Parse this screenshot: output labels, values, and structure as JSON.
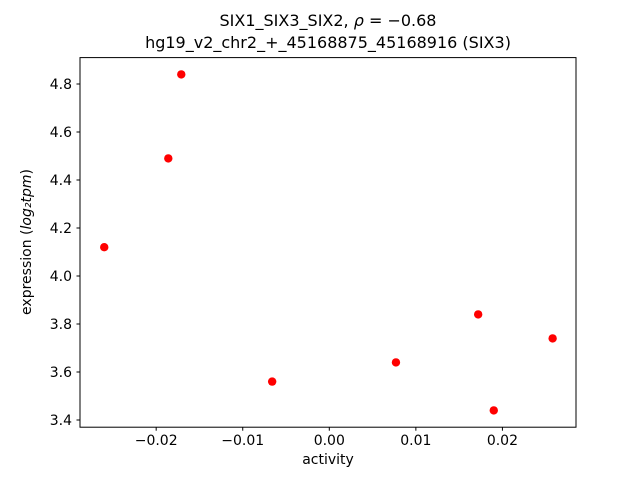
{
  "figure": {
    "background": "#ffffff",
    "title": {
      "line1_prefix": "SIX1_SIX3_SIX2, ",
      "line1_rho": "ρ",
      "line1_rest": " = −0.68",
      "line2": "hg19_v2_chr2_+_45168875_45168916 (SIX3)"
    },
    "xlabel": "activity",
    "ylabel_prefix": "expression (",
    "ylabel_math": "log₂tpm",
    "ylabel_suffix": ")"
  },
  "chart_data": {
    "type": "scatter",
    "title": "SIX1_SIX3_SIX2, ρ = −0.68\nhg19_v2_chr2_+_45168875_45168916 (SIX3)",
    "xlabel": "activity",
    "ylabel": "expression (log2 tpm)",
    "legend": "none",
    "grid": false,
    "marker_color": "#ff0000",
    "axis_color": "#000000",
    "xlim": [
      -0.0288,
      0.0285
    ],
    "ylim": [
      3.37,
      4.91
    ],
    "xtick_values": [
      -0.02,
      -0.01,
      0,
      0.01,
      0.02
    ],
    "xtick_labels": [
      "−0.02",
      "−0.01",
      "0.00",
      "0.01",
      "0.02"
    ],
    "ytick_values": [
      3.4,
      3.6,
      3.8,
      4.0,
      4.2,
      4.4,
      4.6,
      4.8
    ],
    "ytick_labels": [
      "3.4",
      "3.6",
      "3.8",
      "4.0",
      "4.2",
      "4.4",
      "4.6",
      "4.8"
    ],
    "points": [
      {
        "x": -0.026,
        "y": 4.12
      },
      {
        "x": -0.0186,
        "y": 4.49
      },
      {
        "x": -0.0171,
        "y": 4.84
      },
      {
        "x": -0.0066,
        "y": 3.56
      },
      {
        "x": 0.0077,
        "y": 3.64
      },
      {
        "x": 0.0172,
        "y": 3.84
      },
      {
        "x": 0.019,
        "y": 3.44
      },
      {
        "x": 0.0258,
        "y": 3.74
      }
    ]
  }
}
